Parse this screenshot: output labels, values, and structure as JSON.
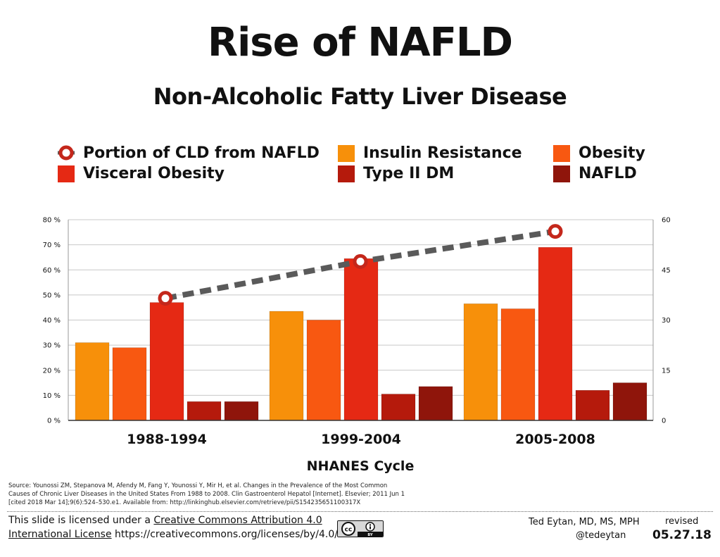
{
  "header": {
    "title": "Rise of NAFLD",
    "subtitle": "Non-Alcoholic Fatty Liver Disease"
  },
  "legend": [
    {
      "label": "Portion of CLD from NAFLD",
      "kind": "line-marker",
      "color": "#c4271b"
    },
    {
      "label": "Insulin Resistance",
      "kind": "bar",
      "color": "#f7900a"
    },
    {
      "label": "Obesity",
      "kind": "bar",
      "color": "#f85811"
    },
    {
      "label": "Visceral Obesity",
      "kind": "bar",
      "color": "#e52914"
    },
    {
      "label": "Type II DM",
      "kind": "bar",
      "color": "#b51a0c"
    },
    {
      "label": "NAFLD",
      "kind": "bar",
      "color": "#8f150b"
    }
  ],
  "chart_data": {
    "type": "bar",
    "categories": [
      "1988-1994",
      "1999-2004",
      "2005-2008"
    ],
    "xlabel": "NHANES Cycle",
    "ylabel": "",
    "ylim": [
      0,
      80
    ],
    "y_ticks": [
      "0 %",
      "10 %",
      "20 %",
      "30 %",
      "40 %",
      "50 %",
      "60 %",
      "70 %",
      "80 %"
    ],
    "y2lim": [
      0,
      60
    ],
    "y2_ticks": [
      "0",
      "15",
      "30",
      "45",
      "60"
    ],
    "grid": true,
    "series": [
      {
        "name": "Insulin Resistance",
        "color": "#f7900a",
        "values": [
          31,
          43.5,
          46.5
        ]
      },
      {
        "name": "Obesity",
        "color": "#f85811",
        "values": [
          29,
          40,
          44.5
        ]
      },
      {
        "name": "Visceral Obesity",
        "color": "#e52914",
        "values": [
          47,
          64.5,
          69
        ]
      },
      {
        "name": "Type II DM",
        "color": "#b51a0c",
        "values": [
          7.5,
          10.5,
          12
        ]
      },
      {
        "name": "NAFLD",
        "color": "#8f150b",
        "values": [
          7.5,
          13.5,
          15
        ]
      }
    ],
    "line_series": {
      "name": "Portion of CLD from NAFLD",
      "axis": "secondary",
      "color": "#5a5a5a",
      "marker_color": "#c4271b",
      "values": [
        36.5,
        47.5,
        56.5
      ]
    }
  },
  "source": {
    "lines": [
      "Source: Younossi ZM, Stepanova M, Afendy M, Fang Y, Younossi Y, Mir H, et al. Changes in the Prevalence of the Most Common",
      "Causes of Chronic Liver Diseases in the United States From 1988 to 2008. Clin Gastroenterol Hepatol [Internet]. Elsevier; 2011 Jun 1",
      "[cited 2018 Mar 14];9(6):524–530.e1. Available from: http://linkinghub.elsevier.com/retrieve/pii/S154235651100317X"
    ]
  },
  "footer": {
    "license_prefix": "This slide is licensed under a ",
    "license_link_1": "Creative Commons Attribution 4.0",
    "license_link_2": "International License",
    "license_url": " https://creativecommons.org/licenses/by/4.0/",
    "cc_badge_label": "BY",
    "author": "Ted Eytan, MD, MS, MPH",
    "handle": "@tedeytan",
    "revised_label": "revised",
    "revised_date": "05.27.18"
  }
}
